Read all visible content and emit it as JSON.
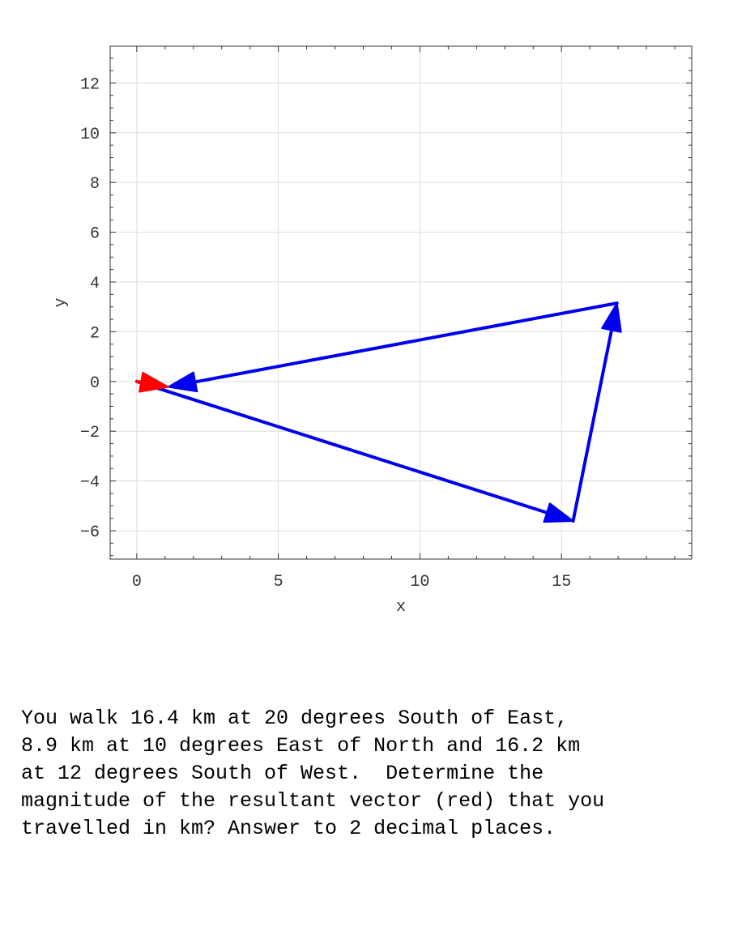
{
  "chart_data": {
    "type": "vector-diagram",
    "xlabel": "x",
    "ylabel": "y",
    "xlim": [
      -0.94,
      19.6
    ],
    "ylim": [
      -7.14,
      13.48
    ],
    "xticks": [
      0,
      5,
      10,
      15
    ],
    "yticks": [
      -6,
      -4,
      -2,
      0,
      2,
      4,
      6,
      8,
      10,
      12
    ],
    "grid": true,
    "vectors": [
      {
        "from": [
          0,
          0
        ],
        "to": [
          15.41,
          -5.61
        ],
        "color": "#0000ee"
      },
      {
        "from": [
          15.41,
          -5.61
        ],
        "to": [
          16.96,
          3.15
        ],
        "color": "#0000ee"
      },
      {
        "from": [
          16.96,
          3.15
        ],
        "to": [
          1.11,
          -0.22
        ],
        "color": "#0000ee"
      },
      {
        "from": [
          0,
          0
        ],
        "to": [
          1.11,
          -0.22
        ],
        "color": "#ff0000"
      }
    ]
  },
  "question": {
    "lines": [
      "You walk 16.4 km at 20 degrees South of East,",
      "8.9 km at 10 degrees East of North and 16.2 km",
      "at 12 degrees South of West.  Determine the",
      "magnitude of the resultant vector (red) that you",
      "travelled in km? Answer to 2 decimal places."
    ]
  }
}
